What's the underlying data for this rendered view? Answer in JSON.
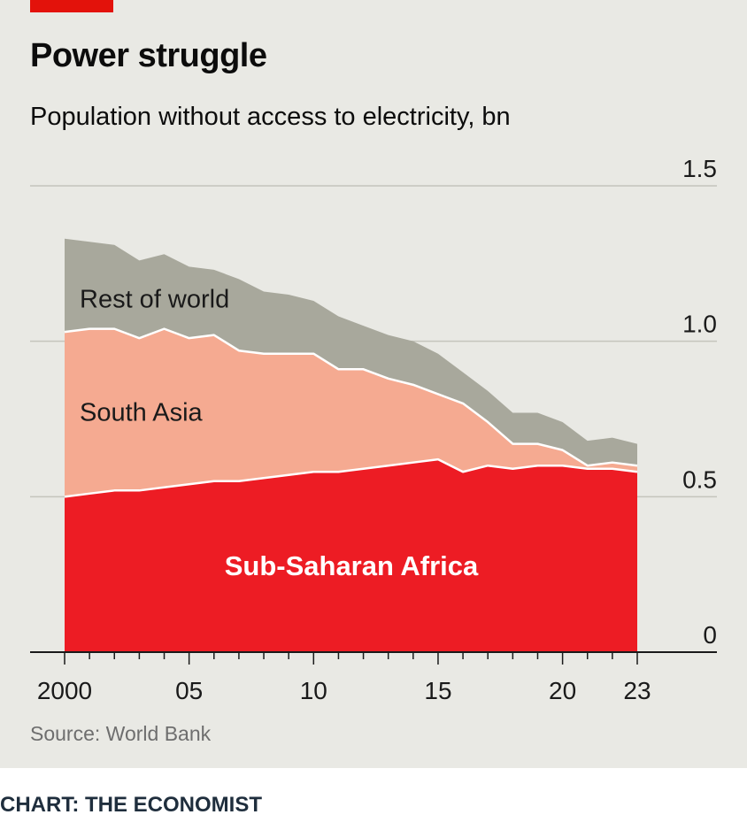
{
  "header": {
    "title": "Power struggle",
    "subtitle": "Population without access to electricity, bn"
  },
  "footer": {
    "source": "Source: World Bank",
    "credit": "CHART: THE ECONOMIST"
  },
  "colors": {
    "brand_red": "#e3120b",
    "ssa": "#ed1c24",
    "south_asia": "#f5aa91",
    "rest": "#a8a89c",
    "background": "#e9e9e4",
    "gridline": "#c4c4bc"
  },
  "chart_data": {
    "type": "area",
    "stacked": true,
    "title": "Power struggle",
    "subtitle": "Population without access to electricity, bn",
    "ylabel": "bn",
    "ylim": [
      0,
      1.5
    ],
    "y_ticks": [
      0,
      0.5,
      1.0,
      1.5
    ],
    "y_tick_labels": [
      "0",
      "0.5",
      "1.0",
      "1.5"
    ],
    "x_ticks": [
      2000,
      2005,
      2010,
      2015,
      2020,
      2023
    ],
    "x_tick_labels": [
      "2000",
      "05",
      "10",
      "15",
      "20",
      "23"
    ],
    "x": [
      2000,
      2001,
      2002,
      2003,
      2004,
      2005,
      2006,
      2007,
      2008,
      2009,
      2010,
      2011,
      2012,
      2013,
      2014,
      2015,
      2016,
      2017,
      2018,
      2019,
      2020,
      2021,
      2022,
      2023
    ],
    "series": [
      {
        "name": "Sub-Saharan Africa",
        "label": "Sub-Saharan Africa",
        "color": "#ed1c24",
        "values": [
          0.5,
          0.51,
          0.52,
          0.52,
          0.53,
          0.54,
          0.55,
          0.55,
          0.56,
          0.57,
          0.58,
          0.58,
          0.59,
          0.6,
          0.61,
          0.62,
          0.58,
          0.6,
          0.59,
          0.6,
          0.6,
          0.59,
          0.59,
          0.58
        ]
      },
      {
        "name": "South Asia",
        "label": "South Asia",
        "color": "#f5aa91",
        "values": [
          0.53,
          0.53,
          0.52,
          0.49,
          0.51,
          0.47,
          0.47,
          0.42,
          0.4,
          0.39,
          0.38,
          0.33,
          0.32,
          0.28,
          0.25,
          0.21,
          0.22,
          0.14,
          0.08,
          0.07,
          0.05,
          0.01,
          0.02,
          0.02
        ]
      },
      {
        "name": "Rest of world",
        "label": "Rest of world",
        "color": "#a8a89c",
        "values": [
          0.3,
          0.28,
          0.27,
          0.25,
          0.24,
          0.23,
          0.21,
          0.23,
          0.2,
          0.19,
          0.17,
          0.17,
          0.14,
          0.14,
          0.14,
          0.13,
          0.1,
          0.1,
          0.1,
          0.1,
          0.09,
          0.08,
          0.08,
          0.07
        ]
      }
    ]
  }
}
